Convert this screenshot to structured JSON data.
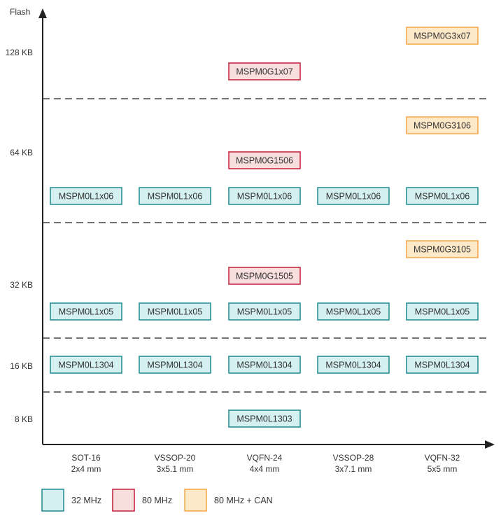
{
  "y_axis": {
    "title": "Flash",
    "tiers": [
      "128 KB",
      "64 KB",
      "32 KB",
      "16 KB",
      "8 KB"
    ]
  },
  "packages": [
    {
      "name": "SOT-16",
      "size": "2x4 mm"
    },
    {
      "name": "VSSOP-20",
      "size": "3x5.1 mm"
    },
    {
      "name": "VQFN-24",
      "size": "4x4 mm"
    },
    {
      "name": "VSSOP-28",
      "size": "3x7.1 mm"
    },
    {
      "name": "VQFN-32",
      "size": "5x5 mm"
    }
  ],
  "legend": [
    {
      "key": "c32",
      "label": "32 MHz",
      "fill": "#d5f0f0",
      "stroke": "#1f8a8f"
    },
    {
      "key": "c80",
      "label": "80 MHz",
      "fill": "#f9dede",
      "stroke": "#c41e3a"
    },
    {
      "key": "c80can",
      "label": "80 MHz + CAN",
      "fill": "#fde8c7",
      "stroke": "#f4a545"
    }
  ],
  "devices": [
    {
      "name": "MSPM0G3x07",
      "col": 4,
      "row": "r128a",
      "cls": "c80can"
    },
    {
      "name": "MSPM0G1x07",
      "col": 2,
      "row": "r128b",
      "cls": "c80"
    },
    {
      "name": "MSPM0G3106",
      "col": 4,
      "row": "r64a",
      "cls": "c80can"
    },
    {
      "name": "MSPM0G1506",
      "col": 2,
      "row": "r64b",
      "cls": "c80"
    },
    {
      "name": "MSPM0L1x06",
      "col": 0,
      "row": "r64c",
      "cls": "c32"
    },
    {
      "name": "MSPM0L1x06",
      "col": 1,
      "row": "r64c",
      "cls": "c32"
    },
    {
      "name": "MSPM0L1x06",
      "col": 2,
      "row": "r64c",
      "cls": "c32"
    },
    {
      "name": "MSPM0L1x06",
      "col": 3,
      "row": "r64c",
      "cls": "c32"
    },
    {
      "name": "MSPM0L1x06",
      "col": 4,
      "row": "r64c",
      "cls": "c32"
    },
    {
      "name": "MSPM0G3105",
      "col": 4,
      "row": "r32a",
      "cls": "c80can"
    },
    {
      "name": "MSPM0G1505",
      "col": 2,
      "row": "r32b",
      "cls": "c80"
    },
    {
      "name": "MSPM0L1x05",
      "col": 0,
      "row": "r32c",
      "cls": "c32"
    },
    {
      "name": "MSPM0L1x05",
      "col": 1,
      "row": "r32c",
      "cls": "c32"
    },
    {
      "name": "MSPM0L1x05",
      "col": 2,
      "row": "r32c",
      "cls": "c32"
    },
    {
      "name": "MSPM0L1x05",
      "col": 3,
      "row": "r32c",
      "cls": "c32"
    },
    {
      "name": "MSPM0L1x05",
      "col": 4,
      "row": "r32c",
      "cls": "c32"
    },
    {
      "name": "MSPM0L1304",
      "col": 0,
      "row": "r16",
      "cls": "c32"
    },
    {
      "name": "MSPM0L1304",
      "col": 1,
      "row": "r16",
      "cls": "c32"
    },
    {
      "name": "MSPM0L1304",
      "col": 2,
      "row": "r16",
      "cls": "c32"
    },
    {
      "name": "MSPM0L1304",
      "col": 3,
      "row": "r16",
      "cls": "c32"
    },
    {
      "name": "MSPM0L1304",
      "col": 4,
      "row": "r16",
      "cls": "c32"
    },
    {
      "name": "MSPM0L1303",
      "col": 2,
      "row": "r8",
      "cls": "c32"
    }
  ]
}
